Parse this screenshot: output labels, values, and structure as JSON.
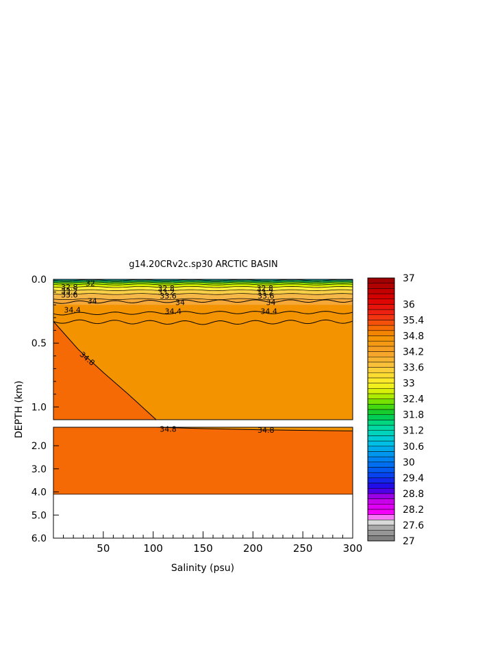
{
  "chart_data": {
    "type": "heatmap",
    "title": "g14.20CRv2c.sp30 ARCTIC BASIN",
    "xlabel": "Salinity (psu)",
    "ylabel": "DEPTH (km)",
    "xlim": [
      0,
      300
    ],
    "x_ticks": [
      "50",
      "100",
      "150",
      "200",
      "250",
      "300"
    ],
    "upper_panel": {
      "ylim": [
        0.0,
        1.1
      ],
      "y_ticks": [
        "0.0",
        "0.5",
        "1.0"
      ]
    },
    "lower_panel": {
      "ylim": [
        1.2,
        6.0
      ],
      "y_ticks": [
        "2.0",
        "3.0",
        "4.0",
        "5.0",
        "6.0"
      ],
      "seafloor_depth": 4.1
    },
    "colorbar": {
      "min": 27,
      "max": 37,
      "tick_labels": [
        "37",
        "36",
        "35.4",
        "34.8",
        "34.2",
        "33.6",
        "33",
        "32.4",
        "31.8",
        "31.2",
        "30.6",
        "30",
        "29.4",
        "28.8",
        "28.2",
        "27.6",
        "27"
      ]
    },
    "contours": {
      "lines": [
        {
          "level": 34.8,
          "label": "34.8",
          "points": [
            [
              0,
              0.33
            ],
            [
              25,
              0.55
            ],
            [
              50,
              0.73
            ],
            [
              75,
              0.9
            ],
            [
              103,
              1.1
            ]
          ]
        },
        {
          "level": 34.8,
          "label": "34.8",
          "points": [
            [
              103,
              1.2
            ],
            [
              150,
              1.26
            ],
            [
              220,
              1.32
            ],
            [
              300,
              1.36
            ]
          ]
        },
        {
          "level": 34.4,
          "label": "34.4",
          "points": [
            [
              0,
              0.33
            ],
            [
              150,
              0.34
            ],
            [
              300,
              0.33
            ]
          ]
        },
        {
          "level": 34.4,
          "label": "34.4",
          "points": [
            [
              0,
              0.27
            ],
            [
              150,
              0.26
            ],
            [
              300,
              0.26
            ]
          ]
        },
        {
          "level": 34.0,
          "label": "34",
          "points": [
            [
              0,
              0.18
            ],
            [
              150,
              0.17
            ],
            [
              300,
              0.17
            ]
          ]
        }
      ],
      "inline_labels": [
        {
          "text": "34.8",
          "x": 34,
          "y": 0.62
        },
        {
          "text": "34.8",
          "x": 115,
          "y": 1.28
        },
        {
          "text": "34.8",
          "x": 213,
          "y": 1.32
        },
        {
          "text": "34.4",
          "x": 19,
          "y": 0.24
        },
        {
          "text": "34.4",
          "x": 120,
          "y": 0.25
        },
        {
          "text": "34.4",
          "x": 216,
          "y": 0.25
        },
        {
          "text": "34",
          "x": 39,
          "y": 0.17
        },
        {
          "text": "34",
          "x": 127,
          "y": 0.18
        },
        {
          "text": "34",
          "x": 218,
          "y": 0.18
        },
        {
          "text": "33.6",
          "x": 16,
          "y": 0.12
        },
        {
          "text": "33.6",
          "x": 115,
          "y": 0.13
        },
        {
          "text": "33.6",
          "x": 213,
          "y": 0.13
        },
        {
          "text": "33.2",
          "x": 16,
          "y": 0.09
        },
        {
          "text": "33.2",
          "x": 113,
          "y": 0.1
        },
        {
          "text": "33.2",
          "x": 212,
          "y": 0.1
        },
        {
          "text": "32.8",
          "x": 16,
          "y": 0.06
        },
        {
          "text": "32.8",
          "x": 113,
          "y": 0.07
        },
        {
          "text": "32.8",
          "x": 212,
          "y": 0.07
        },
        {
          "text": "32",
          "x": 37,
          "y": 0.03
        }
      ]
    },
    "regions": {
      "surface_top_color": "#00b0c8",
      "main_color": "#f49300",
      "deep_color": "#f56a05"
    }
  }
}
